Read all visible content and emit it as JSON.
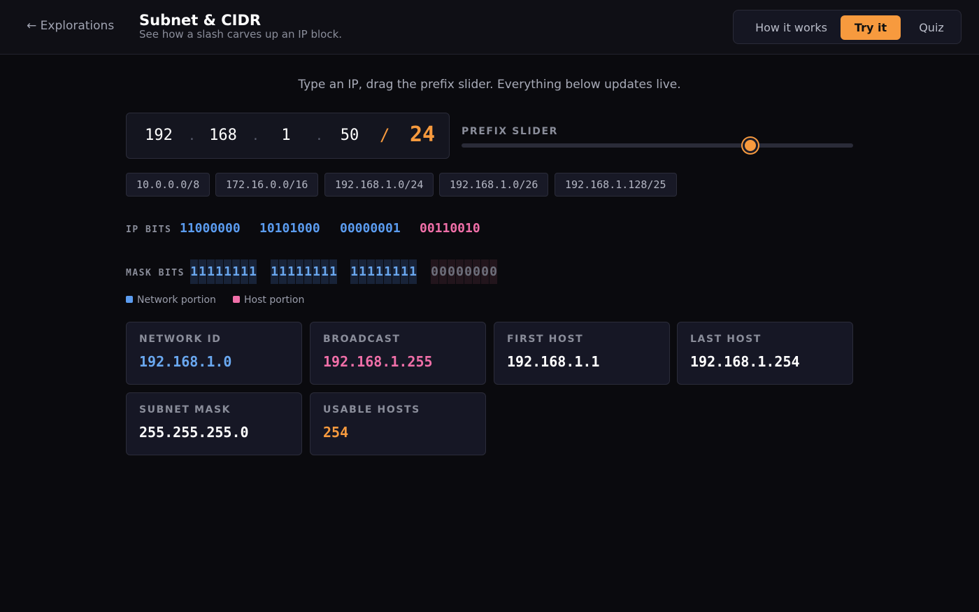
{
  "header": {
    "back_label": "← Explorations",
    "title": "Subnet & CIDR",
    "subtitle": "See how a slash carves up an IP block.",
    "tabs": [
      {
        "label": "How it works",
        "active": false
      },
      {
        "label": "Try it",
        "active": true
      },
      {
        "label": "Quiz",
        "active": false
      }
    ]
  },
  "instructions": "Type an IP, drag the prefix slider. Everything below updates live.",
  "ip_input": {
    "octets": [
      "192",
      "168",
      "1",
      "50"
    ],
    "dot": ".",
    "slash": "/",
    "prefix": "24"
  },
  "slider": {
    "label": "PREFIX SLIDER",
    "min": 0,
    "max": 32,
    "value": 24
  },
  "presets": [
    "10.0.0.0/8",
    "172.16.0.0/16",
    "192.168.1.0/24",
    "192.168.1.0/26",
    "192.168.1.128/25"
  ],
  "ip_bits": {
    "label": "IP BITS",
    "octets": [
      "11000000",
      "10101000",
      "00000001",
      "00110010"
    ]
  },
  "mask_bits": {
    "label": "MASK BITS",
    "octets": [
      "11111111",
      "11111111",
      "11111111",
      "00000000"
    ]
  },
  "legend": {
    "network_label": "Network portion",
    "host_label": "Host portion"
  },
  "colors": {
    "accent": "#f79a3e",
    "network": "#6aa8f0",
    "host": "#f06fa8",
    "plain": "#ffffff"
  },
  "results": [
    {
      "label": "NETWORK ID",
      "value": "192.168.1.0",
      "color": "#6aa8f0"
    },
    {
      "label": "BROADCAST",
      "value": "192.168.1.255",
      "color": "#f06fa8"
    },
    {
      "label": "FIRST HOST",
      "value": "192.168.1.1",
      "color": "#ffffff"
    },
    {
      "label": "LAST HOST",
      "value": "192.168.1.254",
      "color": "#ffffff"
    },
    {
      "label": "SUBNET MASK",
      "value": "255.255.255.0",
      "color": "#ffffff"
    },
    {
      "label": "USABLE HOSTS",
      "value": "254",
      "color": "#f79a3e"
    }
  ]
}
